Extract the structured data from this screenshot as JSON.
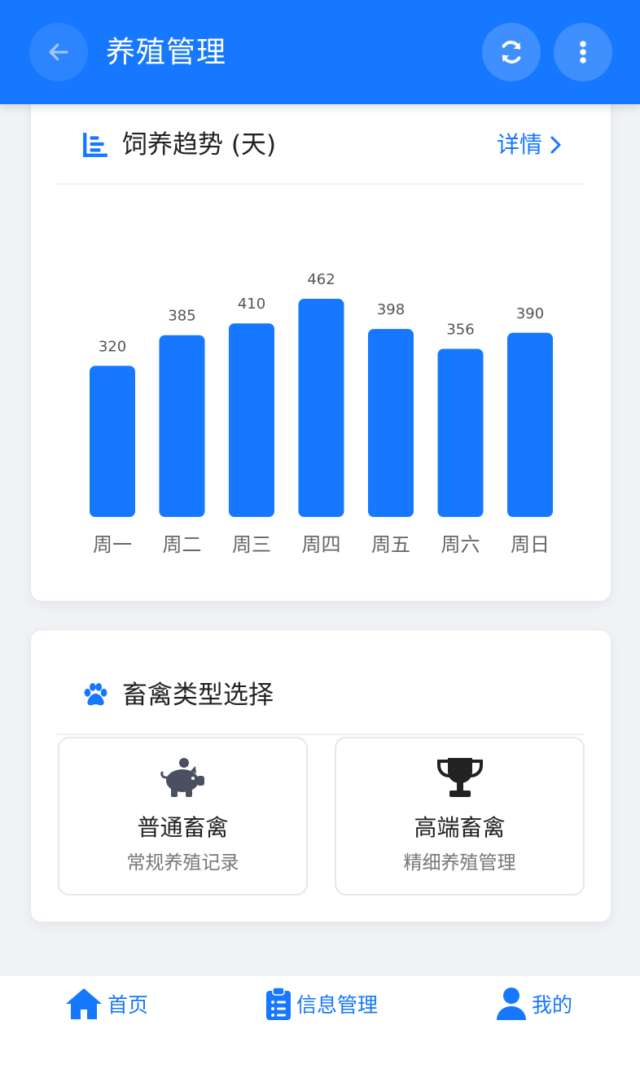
{
  "header": {
    "title": "养殖管理",
    "back_icon": "arrow-left-icon",
    "refresh_icon": "refresh-icon",
    "more_icon": "more-vertical-icon"
  },
  "trend_card": {
    "title": "饲养趋势 (天)",
    "detail_label": "详情",
    "icon": "bar-chart-icon"
  },
  "chart_data": {
    "type": "bar",
    "categories": [
      "周一",
      "周二",
      "周三",
      "周四",
      "周五",
      "周六",
      "周日"
    ],
    "values": [
      320,
      385,
      410,
      462,
      398,
      356,
      390
    ],
    "title": "饲养趋势 (天)",
    "xlabel": "",
    "ylabel": "",
    "bar_color": "#1677ff",
    "grid": false
  },
  "type_card": {
    "title": "畜禽类型选择",
    "icon": "paw-icon",
    "options": [
      {
        "name": "普通畜禽",
        "desc": "常规养殖记录",
        "icon": "piggy-bank-icon"
      },
      {
        "name": "高端畜禽",
        "desc": "精细养殖管理",
        "icon": "trophy-icon"
      }
    ]
  },
  "bottom_nav": {
    "items": [
      {
        "label": "首页",
        "icon": "home-icon"
      },
      {
        "label": "信息管理",
        "icon": "clipboard-list-icon"
      },
      {
        "label": "我的",
        "icon": "user-icon"
      }
    ]
  },
  "colors": {
    "primary": "#1677ff",
    "background": "#f0f2f5",
    "text": "#222222"
  }
}
